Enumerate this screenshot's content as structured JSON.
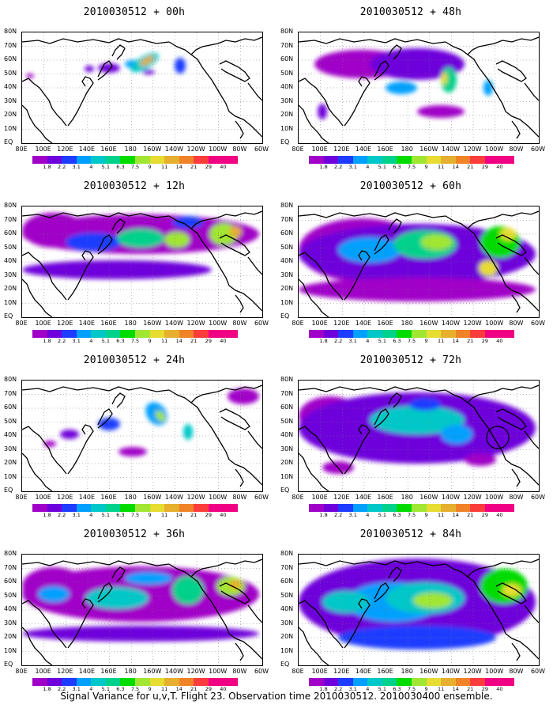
{
  "footer": "Signal Variance for u,v,T. Flight 23. Observation time 2010030512. 2010030400 ensemble.",
  "lat_labels": [
    "80N",
    "70N",
    "60N",
    "50N",
    "40N",
    "30N",
    "20N",
    "10N",
    "EQ"
  ],
  "lon_labels": [
    "80E",
    "100E",
    "120E",
    "140E",
    "160E",
    "180",
    "160W",
    "140W",
    "120W",
    "100W",
    "80W",
    "60W"
  ],
  "colorbar": {
    "labels": [
      "1.8",
      "2.2",
      "3.1",
      "4",
      "5.1",
      "6.3",
      "7.5",
      "9",
      "11",
      "14",
      "21",
      "29",
      "40"
    ],
    "colors": [
      "#a000c8",
      "#6e00dc",
      "#1e3cff",
      "#00a0ff",
      "#00c8c8",
      "#00d28c",
      "#00dc00",
      "#a0e632",
      "#e6dc32",
      "#e6af2d",
      "#f08228",
      "#fa3c3c",
      "#f00082"
    ]
  },
  "panels": [
    {
      "title": "2010030512 + 00h",
      "level": 0
    },
    {
      "title": "2010030512 + 48h",
      "level": 4
    },
    {
      "title": "2010030512 + 12h",
      "level": 1
    },
    {
      "title": "2010030512 + 60h",
      "level": 5
    },
    {
      "title": "2010030512 + 24h",
      "level": 2
    },
    {
      "title": "2010030512 + 72h",
      "level": 6
    },
    {
      "title": "2010030512 + 36h",
      "level": 3
    },
    {
      "title": "2010030512 + 84h",
      "level": 7
    }
  ],
  "marker": {
    "label": "circled region",
    "panel": "2010030512 + 72h"
  }
}
